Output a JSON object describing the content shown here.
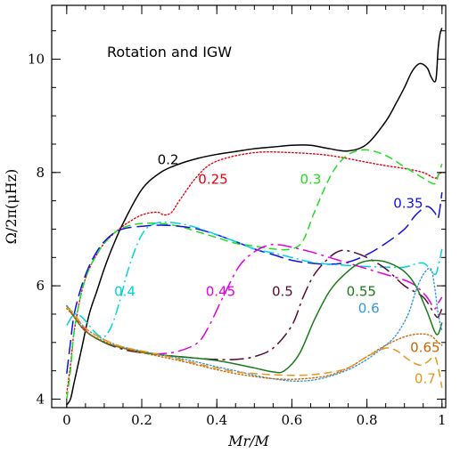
{
  "chart_data": {
    "type": "line",
    "title": "Rotation and IGW",
    "xlabel": "Mr/M",
    "ylabel": "Ω/2π(μHz)",
    "xlim": [
      -0.04,
      1.01
    ],
    "ylim": [
      3.85,
      10.95
    ],
    "x_ticks": [
      0,
      0.2,
      0.4,
      0.6,
      0.8,
      1
    ],
    "x_tick_labels": [
      "0",
      "0.2",
      "0.4",
      "0.6",
      "0.8",
      "1"
    ],
    "y_ticks": [
      4,
      6,
      8,
      10
    ],
    "y_tick_labels": [
      "4",
      "6",
      "8",
      "10"
    ],
    "x_minor_step": 0.05,
    "y_minor_step": 0.5,
    "grid": false,
    "legend": "inline labels",
    "series": [
      {
        "name": "0.2",
        "color": "#000000",
        "dash": "solid",
        "label_pos": [
          0.27,
          8.15
        ],
        "x": [
          0,
          0.01,
          0.02,
          0.04,
          0.06,
          0.08,
          0.1,
          0.12,
          0.15,
          0.2,
          0.25,
          0.3,
          0.35,
          0.4,
          0.45,
          0.5,
          0.55,
          0.6,
          0.65,
          0.7,
          0.75,
          0.8,
          0.85,
          0.88,
          0.9,
          0.92,
          0.94,
          0.96,
          0.97,
          0.98,
          0.985,
          0.99,
          0.995,
          1.0
        ],
        "y": [
          3.9,
          4.0,
          4.3,
          4.9,
          5.5,
          5.9,
          6.3,
          6.65,
          7.1,
          7.7,
          8.0,
          8.15,
          8.25,
          8.32,
          8.37,
          8.42,
          8.45,
          8.48,
          8.48,
          8.42,
          8.38,
          8.5,
          8.9,
          9.25,
          9.5,
          9.78,
          9.92,
          9.85,
          9.7,
          9.6,
          9.7,
          10.2,
          10.45,
          10.55
        ]
      },
      {
        "name": "0.25",
        "color": "#e8000b",
        "dash": "dotted",
        "label_pos": [
          0.39,
          7.8
        ],
        "x": [
          0,
          0.01,
          0.02,
          0.04,
          0.06,
          0.08,
          0.1,
          0.13,
          0.16,
          0.2,
          0.24,
          0.26,
          0.28,
          0.3,
          0.35,
          0.4,
          0.5,
          0.6,
          0.7,
          0.8,
          0.85,
          0.9,
          0.95,
          0.98,
          0.99,
          1.0
        ],
        "y": [
          4.1,
          4.6,
          5.2,
          5.9,
          6.3,
          6.55,
          6.75,
          6.95,
          7.1,
          7.25,
          7.3,
          7.25,
          7.3,
          7.5,
          7.95,
          8.2,
          8.35,
          8.35,
          8.3,
          8.18,
          8.12,
          8.07,
          8.0,
          7.9,
          7.95,
          8.02
        ]
      },
      {
        "name": "0.3",
        "color": "#22dd22",
        "dash": "dashed",
        "label_pos": [
          0.65,
          7.8
        ],
        "x": [
          0,
          0.01,
          0.02,
          0.04,
          0.06,
          0.08,
          0.1,
          0.13,
          0.16,
          0.2,
          0.25,
          0.3,
          0.35,
          0.4,
          0.45,
          0.5,
          0.55,
          0.6,
          0.63,
          0.66,
          0.7,
          0.73,
          0.76,
          0.8,
          0.85,
          0.9,
          0.95,
          0.98,
          0.99,
          1.0
        ],
        "y": [
          4.0,
          4.5,
          5.2,
          5.9,
          6.3,
          6.55,
          6.75,
          6.95,
          7.05,
          7.1,
          7.1,
          7.05,
          6.95,
          6.85,
          6.75,
          6.7,
          6.65,
          6.65,
          6.8,
          7.3,
          7.9,
          8.2,
          8.35,
          8.4,
          8.3,
          8.1,
          7.9,
          7.8,
          7.95,
          8.15
        ]
      },
      {
        "name": "0.35",
        "color": "#1010e0",
        "dash": "long-dash",
        "label_pos": [
          0.91,
          7.38
        ],
        "x": [
          0,
          0.01,
          0.02,
          0.04,
          0.06,
          0.08,
          0.1,
          0.13,
          0.16,
          0.2,
          0.25,
          0.3,
          0.35,
          0.4,
          0.45,
          0.5,
          0.55,
          0.6,
          0.65,
          0.7,
          0.75,
          0.8,
          0.85,
          0.9,
          0.93,
          0.96,
          0.98,
          0.99,
          1.0
        ],
        "y": [
          4.45,
          5.0,
          5.5,
          6.0,
          6.35,
          6.6,
          6.78,
          6.95,
          7.02,
          7.05,
          7.07,
          7.05,
          7.0,
          6.9,
          6.78,
          6.65,
          6.55,
          6.45,
          6.4,
          6.38,
          6.42,
          6.55,
          6.75,
          7.0,
          7.25,
          7.4,
          7.3,
          7.2,
          7.65
        ]
      },
      {
        "name": "0.4",
        "color": "#00d4dc",
        "dash": "dash-dot",
        "label_pos": [
          0.155,
          5.82
        ],
        "x": [
          0,
          0.02,
          0.04,
          0.06,
          0.08,
          0.1,
          0.12,
          0.14,
          0.16,
          0.18,
          0.2,
          0.22,
          0.25,
          0.3,
          0.35,
          0.4,
          0.45,
          0.5,
          0.55,
          0.6,
          0.65,
          0.7,
          0.75,
          0.8,
          0.85,
          0.9,
          0.95,
          0.98,
          0.99,
          1.0
        ],
        "y": [
          5.3,
          5.5,
          5.45,
          5.3,
          5.15,
          5.1,
          5.3,
          5.7,
          6.2,
          6.6,
          6.9,
          7.05,
          7.12,
          7.1,
          7.02,
          6.9,
          6.78,
          6.65,
          6.58,
          6.5,
          6.42,
          6.38,
          6.36,
          6.34,
          6.33,
          6.33,
          6.4,
          6.2,
          6.35,
          6.65
        ]
      },
      {
        "name": "0.45",
        "color": "#e000e0",
        "dash": "long-dash-dot",
        "label_pos": [
          0.41,
          5.82
        ],
        "x": [
          0,
          0.02,
          0.04,
          0.06,
          0.1,
          0.15,
          0.2,
          0.25,
          0.3,
          0.35,
          0.38,
          0.42,
          0.46,
          0.5,
          0.54,
          0.57,
          0.6,
          0.65,
          0.7,
          0.75,
          0.8,
          0.85,
          0.9,
          0.93,
          0.96,
          0.98,
          0.99,
          1.0
        ],
        "y": [
          5.65,
          5.45,
          5.3,
          5.15,
          5.0,
          4.88,
          4.82,
          4.8,
          4.85,
          5.0,
          5.3,
          5.85,
          6.35,
          6.6,
          6.72,
          6.72,
          6.68,
          6.6,
          6.5,
          6.4,
          6.3,
          6.2,
          6.1,
          6.0,
          5.8,
          5.6,
          5.7,
          5.8
        ]
      },
      {
        "name": "0.5",
        "color": "#5a0a32",
        "dash": "long-dash-dot",
        "label_pos": [
          0.575,
          5.82
        ],
        "x": [
          0,
          0.02,
          0.05,
          0.1,
          0.15,
          0.2,
          0.25,
          0.3,
          0.35,
          0.4,
          0.45,
          0.5,
          0.55,
          0.6,
          0.63,
          0.66,
          0.7,
          0.73,
          0.76,
          0.8,
          0.85,
          0.9,
          0.95,
          0.98,
          0.99,
          1.0
        ],
        "y": [
          5.65,
          5.45,
          5.2,
          5.0,
          4.88,
          4.82,
          4.78,
          4.75,
          4.72,
          4.7,
          4.7,
          4.75,
          4.9,
          5.3,
          5.8,
          6.2,
          6.5,
          6.62,
          6.6,
          6.5,
          6.3,
          6.0,
          5.8,
          5.5,
          5.45,
          5.6
        ]
      },
      {
        "name": "0.55",
        "color": "#1a7a1a",
        "dash": "solid",
        "label_pos": [
          0.785,
          5.82
        ],
        "x": [
          0,
          0.02,
          0.05,
          0.1,
          0.15,
          0.2,
          0.25,
          0.3,
          0.35,
          0.4,
          0.45,
          0.5,
          0.55,
          0.58,
          0.62,
          0.66,
          0.7,
          0.74,
          0.78,
          0.82,
          0.86,
          0.9,
          0.93,
          0.96,
          0.98,
          0.99,
          1.0
        ],
        "y": [
          5.65,
          5.45,
          5.2,
          5.0,
          4.9,
          4.83,
          4.78,
          4.75,
          4.72,
          4.68,
          4.62,
          4.55,
          4.48,
          4.5,
          4.8,
          5.4,
          5.9,
          6.2,
          6.4,
          6.45,
          6.4,
          6.25,
          6.0,
          5.55,
          5.2,
          5.15,
          5.35
        ]
      },
      {
        "name": "0.6",
        "color": "#3399dd",
        "dash": "dotted",
        "label_pos": [
          0.805,
          5.52
        ],
        "x": [
          0,
          0.02,
          0.05,
          0.1,
          0.15,
          0.2,
          0.25,
          0.3,
          0.35,
          0.4,
          0.45,
          0.5,
          0.55,
          0.6,
          0.65,
          0.7,
          0.75,
          0.8,
          0.85,
          0.88,
          0.91,
          0.93,
          0.95,
          0.97,
          0.98,
          0.99,
          1.0
        ],
        "y": [
          5.65,
          5.5,
          5.25,
          5.05,
          4.92,
          4.85,
          4.78,
          4.72,
          4.65,
          4.57,
          4.5,
          4.42,
          4.36,
          4.32,
          4.33,
          4.4,
          4.52,
          4.7,
          4.95,
          5.15,
          5.5,
          5.9,
          6.2,
          6.3,
          6.0,
          5.5,
          5.2
        ]
      },
      {
        "name": "0.65",
        "color": "#cc6600",
        "dash": "dotted",
        "label_pos": [
          0.955,
          4.83
        ],
        "x": [
          0,
          0.02,
          0.05,
          0.1,
          0.15,
          0.2,
          0.25,
          0.3,
          0.35,
          0.4,
          0.45,
          0.5,
          0.55,
          0.6,
          0.65,
          0.7,
          0.75,
          0.8,
          0.85,
          0.9,
          0.94,
          0.97,
          0.99,
          1.0
        ],
        "y": [
          5.6,
          5.45,
          5.2,
          5.02,
          4.9,
          4.82,
          4.75,
          4.68,
          4.6,
          4.52,
          4.45,
          4.4,
          4.36,
          4.35,
          4.37,
          4.42,
          4.55,
          4.75,
          4.95,
          5.1,
          5.15,
          5.12,
          5.0,
          4.95
        ]
      },
      {
        "name": "0.7",
        "color": "#e8961e",
        "dash": "dashed",
        "label_pos": [
          0.955,
          4.28
        ],
        "x": [
          0,
          0.02,
          0.05,
          0.1,
          0.15,
          0.2,
          0.25,
          0.3,
          0.35,
          0.4,
          0.45,
          0.5,
          0.55,
          0.6,
          0.65,
          0.7,
          0.75,
          0.8,
          0.85,
          0.88,
          0.91,
          0.94,
          0.96,
          0.98,
          0.99,
          1.0
        ],
        "y": [
          5.62,
          5.5,
          5.25,
          5.05,
          4.92,
          4.85,
          4.78,
          4.7,
          4.62,
          4.55,
          4.48,
          4.45,
          4.43,
          4.42,
          4.43,
          4.47,
          4.55,
          4.75,
          4.9,
          4.85,
          4.7,
          4.6,
          4.65,
          4.75,
          4.55,
          4.2
        ]
      }
    ]
  }
}
